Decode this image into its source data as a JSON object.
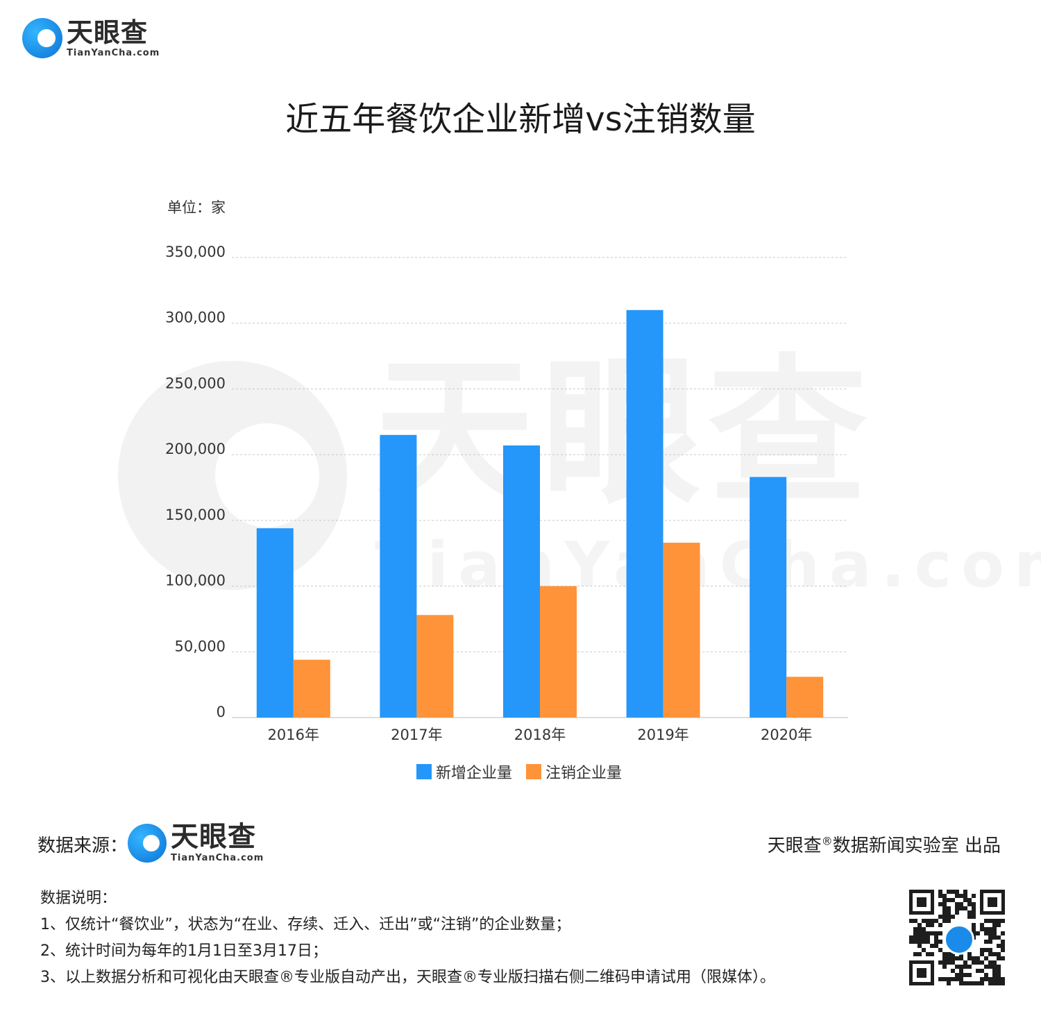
{
  "logo": {
    "cn": "天眼查",
    "en": "TianYanCha.com"
  },
  "title": "近五年餐饮企业新增vs注销数量",
  "unit_label": "单位：家",
  "watermark": {
    "cn": "天眼查",
    "en": "TianYanCha.com"
  },
  "chart_data": {
    "type": "bar",
    "title": "近五年餐饮企业新增vs注销数量",
    "categories": [
      "2016年",
      "2017年",
      "2018年",
      "2019年",
      "2020年"
    ],
    "series": [
      {
        "name": "新增企业量",
        "color": "#2596fa",
        "values": [
          144000,
          215000,
          207000,
          310000,
          183000
        ]
      },
      {
        "name": "注销企业量",
        "color": "#ff9339",
        "values": [
          44000,
          78000,
          100000,
          133000,
          31000
        ]
      }
    ],
    "ylim": [
      0,
      350000
    ],
    "yticks": [
      0,
      50000,
      100000,
      150000,
      200000,
      250000,
      300000,
      350000
    ],
    "ytick_labels": [
      "0",
      "50,000",
      "100,000",
      "150,000",
      "200,000",
      "250,000",
      "300,000",
      "350,000"
    ],
    "ylabel": "单位：家",
    "grid": true,
    "legend": "bottom"
  },
  "footer": {
    "source_label": "数据来源：",
    "credit_pre": "天眼查",
    "credit_reg": "®",
    "credit_post": "数据新闻实验室 出品",
    "notes_title": "数据说明：",
    "notes": [
      "1、仅统计“餐饮业”，状态为“在业、存续、迁入、迁出”或“注销”的企业数量；",
      "2、统计时间为每年的1月1日至3月17日；",
      "3、以上数据分析和可视化由天眼查®专业版自动产出，天眼查®专业版扫描右侧二维码申请试用（限媒体）。"
    ]
  }
}
